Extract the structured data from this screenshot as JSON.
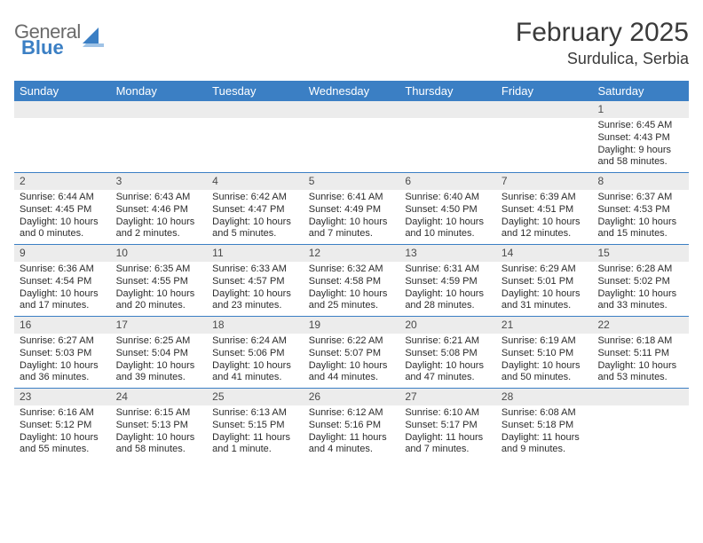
{
  "brand": {
    "word1": "General",
    "word2": "Blue"
  },
  "title": "February 2025",
  "subtitle": "Surdulica, Serbia",
  "accent_color": "#3b7fc4",
  "daynum_bg": "#ececec",
  "day_names": [
    "Sunday",
    "Monday",
    "Tuesday",
    "Wednesday",
    "Thursday",
    "Friday",
    "Saturday"
  ],
  "weeks": [
    [
      null,
      null,
      null,
      null,
      null,
      null,
      {
        "n": "1",
        "sunrise": "Sunrise: 6:45 AM",
        "sunset": "Sunset: 4:43 PM",
        "daylight": "Daylight: 9 hours and 58 minutes."
      }
    ],
    [
      {
        "n": "2",
        "sunrise": "Sunrise: 6:44 AM",
        "sunset": "Sunset: 4:45 PM",
        "daylight": "Daylight: 10 hours and 0 minutes."
      },
      {
        "n": "3",
        "sunrise": "Sunrise: 6:43 AM",
        "sunset": "Sunset: 4:46 PM",
        "daylight": "Daylight: 10 hours and 2 minutes."
      },
      {
        "n": "4",
        "sunrise": "Sunrise: 6:42 AM",
        "sunset": "Sunset: 4:47 PM",
        "daylight": "Daylight: 10 hours and 5 minutes."
      },
      {
        "n": "5",
        "sunrise": "Sunrise: 6:41 AM",
        "sunset": "Sunset: 4:49 PM",
        "daylight": "Daylight: 10 hours and 7 minutes."
      },
      {
        "n": "6",
        "sunrise": "Sunrise: 6:40 AM",
        "sunset": "Sunset: 4:50 PM",
        "daylight": "Daylight: 10 hours and 10 minutes."
      },
      {
        "n": "7",
        "sunrise": "Sunrise: 6:39 AM",
        "sunset": "Sunset: 4:51 PM",
        "daylight": "Daylight: 10 hours and 12 minutes."
      },
      {
        "n": "8",
        "sunrise": "Sunrise: 6:37 AM",
        "sunset": "Sunset: 4:53 PM",
        "daylight": "Daylight: 10 hours and 15 minutes."
      }
    ],
    [
      {
        "n": "9",
        "sunrise": "Sunrise: 6:36 AM",
        "sunset": "Sunset: 4:54 PM",
        "daylight": "Daylight: 10 hours and 17 minutes."
      },
      {
        "n": "10",
        "sunrise": "Sunrise: 6:35 AM",
        "sunset": "Sunset: 4:55 PM",
        "daylight": "Daylight: 10 hours and 20 minutes."
      },
      {
        "n": "11",
        "sunrise": "Sunrise: 6:33 AM",
        "sunset": "Sunset: 4:57 PM",
        "daylight": "Daylight: 10 hours and 23 minutes."
      },
      {
        "n": "12",
        "sunrise": "Sunrise: 6:32 AM",
        "sunset": "Sunset: 4:58 PM",
        "daylight": "Daylight: 10 hours and 25 minutes."
      },
      {
        "n": "13",
        "sunrise": "Sunrise: 6:31 AM",
        "sunset": "Sunset: 4:59 PM",
        "daylight": "Daylight: 10 hours and 28 minutes."
      },
      {
        "n": "14",
        "sunrise": "Sunrise: 6:29 AM",
        "sunset": "Sunset: 5:01 PM",
        "daylight": "Daylight: 10 hours and 31 minutes."
      },
      {
        "n": "15",
        "sunrise": "Sunrise: 6:28 AM",
        "sunset": "Sunset: 5:02 PM",
        "daylight": "Daylight: 10 hours and 33 minutes."
      }
    ],
    [
      {
        "n": "16",
        "sunrise": "Sunrise: 6:27 AM",
        "sunset": "Sunset: 5:03 PM",
        "daylight": "Daylight: 10 hours and 36 minutes."
      },
      {
        "n": "17",
        "sunrise": "Sunrise: 6:25 AM",
        "sunset": "Sunset: 5:04 PM",
        "daylight": "Daylight: 10 hours and 39 minutes."
      },
      {
        "n": "18",
        "sunrise": "Sunrise: 6:24 AM",
        "sunset": "Sunset: 5:06 PM",
        "daylight": "Daylight: 10 hours and 41 minutes."
      },
      {
        "n": "19",
        "sunrise": "Sunrise: 6:22 AM",
        "sunset": "Sunset: 5:07 PM",
        "daylight": "Daylight: 10 hours and 44 minutes."
      },
      {
        "n": "20",
        "sunrise": "Sunrise: 6:21 AM",
        "sunset": "Sunset: 5:08 PM",
        "daylight": "Daylight: 10 hours and 47 minutes."
      },
      {
        "n": "21",
        "sunrise": "Sunrise: 6:19 AM",
        "sunset": "Sunset: 5:10 PM",
        "daylight": "Daylight: 10 hours and 50 minutes."
      },
      {
        "n": "22",
        "sunrise": "Sunrise: 6:18 AM",
        "sunset": "Sunset: 5:11 PM",
        "daylight": "Daylight: 10 hours and 53 minutes."
      }
    ],
    [
      {
        "n": "23",
        "sunrise": "Sunrise: 6:16 AM",
        "sunset": "Sunset: 5:12 PM",
        "daylight": "Daylight: 10 hours and 55 minutes."
      },
      {
        "n": "24",
        "sunrise": "Sunrise: 6:15 AM",
        "sunset": "Sunset: 5:13 PM",
        "daylight": "Daylight: 10 hours and 58 minutes."
      },
      {
        "n": "25",
        "sunrise": "Sunrise: 6:13 AM",
        "sunset": "Sunset: 5:15 PM",
        "daylight": "Daylight: 11 hours and 1 minute."
      },
      {
        "n": "26",
        "sunrise": "Sunrise: 6:12 AM",
        "sunset": "Sunset: 5:16 PM",
        "daylight": "Daylight: 11 hours and 4 minutes."
      },
      {
        "n": "27",
        "sunrise": "Sunrise: 6:10 AM",
        "sunset": "Sunset: 5:17 PM",
        "daylight": "Daylight: 11 hours and 7 minutes."
      },
      {
        "n": "28",
        "sunrise": "Sunrise: 6:08 AM",
        "sunset": "Sunset: 5:18 PM",
        "daylight": "Daylight: 11 hours and 9 minutes."
      },
      null
    ]
  ]
}
